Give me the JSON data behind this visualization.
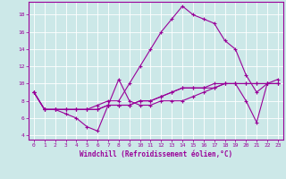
{
  "xlabel": "Windchill (Refroidissement éolien,°C)",
  "xlim": [
    -0.5,
    23.5
  ],
  "ylim": [
    3.5,
    19.5
  ],
  "yticks": [
    4,
    6,
    8,
    10,
    12,
    14,
    16,
    18
  ],
  "xticks": [
    0,
    1,
    2,
    3,
    4,
    5,
    6,
    7,
    8,
    9,
    10,
    11,
    12,
    13,
    14,
    15,
    16,
    17,
    18,
    19,
    20,
    21,
    22,
    23
  ],
  "bg_color": "#cce8e8",
  "line_color": "#990099",
  "grid_color": "#ffffff",
  "series": [
    [
      9,
      7,
      7,
      6.5,
      6,
      5,
      4.5,
      7.5,
      10.5,
      8,
      7.5,
      7.5,
      8,
      8,
      8,
      8.5,
      9,
      9.5,
      10,
      10,
      8,
      5.5,
      10,
      10
    ],
    [
      9,
      7,
      7,
      7,
      7,
      7,
      7,
      7.5,
      7.5,
      7.5,
      8,
      8,
      8.5,
      9,
      9.5,
      9.5,
      9.5,
      9.5,
      10,
      10,
      10,
      10,
      10,
      10
    ],
    [
      9,
      7,
      7,
      7,
      7,
      7,
      7,
      7.5,
      7.5,
      7.5,
      8,
      8,
      8.5,
      9,
      9.5,
      9.5,
      9.5,
      10,
      10,
      10,
      10,
      10,
      10,
      10
    ],
    [
      9,
      7,
      7,
      7,
      7,
      7,
      7.5,
      8,
      8,
      10,
      12,
      14,
      16,
      17.5,
      19,
      18,
      17.5,
      17,
      15,
      14,
      11,
      9,
      10,
      10.5
    ]
  ]
}
